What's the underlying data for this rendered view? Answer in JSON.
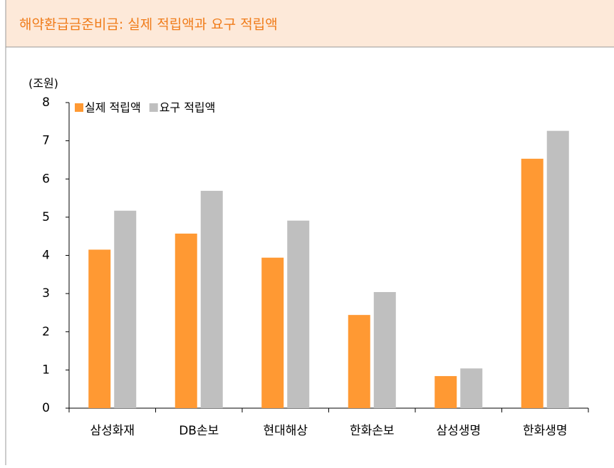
{
  "chart_data": {
    "type": "bar",
    "title": "해약환급금준비금: 실제 적립액과 요구 적립액",
    "y_label": "(조원)",
    "categories": [
      "삼성화재",
      "DB손보",
      "현대해상",
      "한화손보",
      "삼성생명",
      "한화생명"
    ],
    "series": [
      {
        "name": "실제 적립액",
        "color": "#ff9933",
        "values": [
          4.15,
          4.57,
          3.94,
          2.44,
          0.84,
          6.53
        ]
      },
      {
        "name": "요구 적립액",
        "color": "#bfbfbf",
        "values": [
          5.17,
          5.69,
          4.91,
          3.04,
          1.04,
          7.26
        ]
      }
    ],
    "ylim": [
      0,
      8
    ],
    "yticks": [
      0,
      1,
      2,
      3,
      4,
      5,
      6,
      7,
      8
    ],
    "legend": "top-left",
    "grid": false
  }
}
